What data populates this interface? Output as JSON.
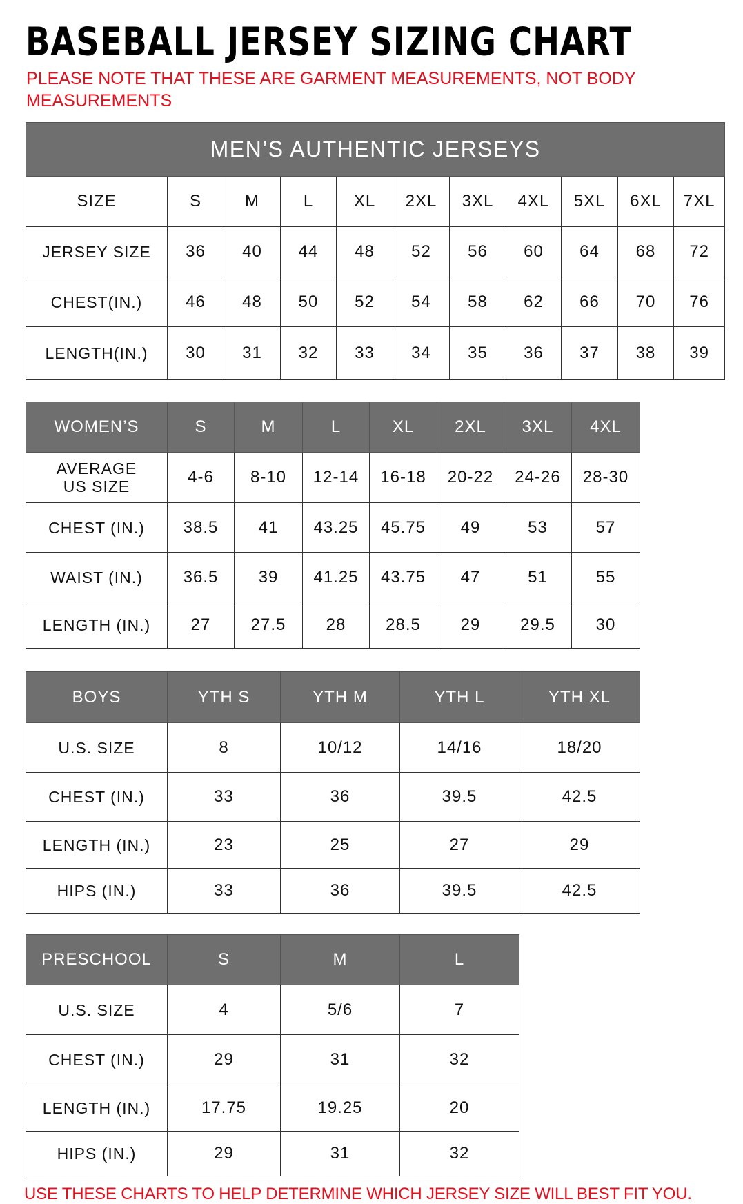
{
  "title": "BASEBALL JERSEY SIZING CHART",
  "note": "PLEASE NOTE THAT THESE ARE GARMENT MEASUREMENTS, NOT BODY MEASUREMENTS",
  "footer": "USE THESE CHARTS TO HELP DETERMINE WHICH JERSEY SIZE WILL BEST FIT YOU.",
  "colors": {
    "header_gray": "#6f6f6f",
    "note_red": "#e3101e"
  },
  "tables": [
    {
      "banner": "MEN’S AUTHENTIC JERSEYS",
      "header_row": [
        "SIZE",
        "S",
        "M",
        "L",
        "XL",
        "2XL",
        "3XL",
        "4XL",
        "5XL",
        "6XL",
        "7XL"
      ],
      "header_style": "plain",
      "rows": [
        [
          "JERSEY SIZE",
          "36",
          "40",
          "44",
          "48",
          "52",
          "56",
          "60",
          "64",
          "68",
          "72"
        ],
        [
          "CHEST(IN.)",
          "46",
          "48",
          "50",
          "52",
          "54",
          "58",
          "62",
          "66",
          "70",
          "76"
        ],
        [
          "LENGTH(IN.)",
          "30",
          "31",
          "32",
          "33",
          "34",
          "35",
          "36",
          "37",
          "38",
          "39"
        ]
      ]
    },
    {
      "header_row": [
        "WOMEN’S",
        "S",
        "M",
        "L",
        "XL",
        "2XL",
        "3XL",
        "4XL"
      ],
      "header_style": "gray",
      "rows": [
        [
          "AVERAGE US SIZE",
          "4-6",
          "8-10",
          "12-14",
          "16-18",
          "20-22",
          "24-26",
          "28-30"
        ],
        [
          "CHEST (IN.)",
          "38.5",
          "41",
          "43.25",
          "45.75",
          "49",
          "53",
          "57"
        ],
        [
          "WAIST (IN.)",
          "36.5",
          "39",
          "41.25",
          "43.75",
          "47",
          "51",
          "55"
        ],
        [
          "LENGTH (IN.)",
          "27",
          "27.5",
          "28",
          "28.5",
          "29",
          "29.5",
          "30"
        ]
      ]
    },
    {
      "header_row": [
        "BOYS",
        "YTH S",
        "YTH M",
        "YTH L",
        "YTH XL"
      ],
      "header_style": "gray",
      "rows": [
        [
          "U.S. SIZE",
          "8",
          "10/12",
          "14/16",
          "18/20"
        ],
        [
          "CHEST (IN.)",
          "33",
          "36",
          "39.5",
          "42.5"
        ],
        [
          "LENGTH (IN.)",
          "23",
          "25",
          "27",
          "29"
        ],
        [
          "HIPS (IN.)",
          "33",
          "36",
          "39.5",
          "42.5"
        ]
      ]
    },
    {
      "header_row": [
        "PRESCHOOL",
        "S",
        "M",
        "L"
      ],
      "header_style": "gray",
      "rows": [
        [
          "U.S. SIZE",
          "4",
          "5/6",
          "7"
        ],
        [
          "CHEST (IN.)",
          "29",
          "31",
          "32"
        ],
        [
          "LENGTH (IN.)",
          "17.75",
          "19.25",
          "20"
        ],
        [
          "HIPS (IN.)",
          "29",
          "31",
          "32"
        ]
      ]
    }
  ]
}
